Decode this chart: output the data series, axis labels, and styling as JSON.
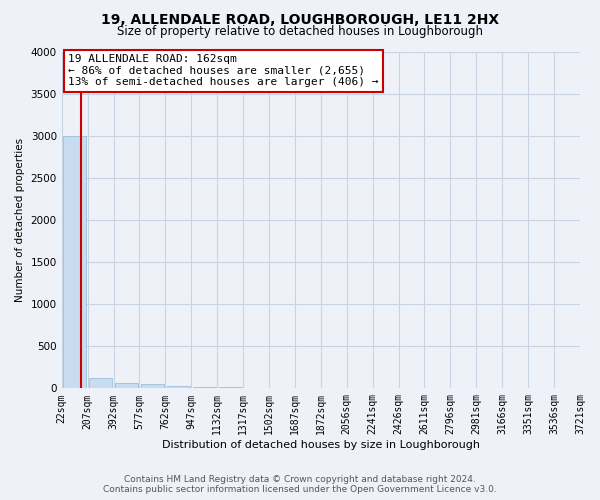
{
  "title": "19, ALLENDALE ROAD, LOUGHBOROUGH, LE11 2HX",
  "subtitle": "Size of property relative to detached houses in Loughborough",
  "xlabel": "Distribution of detached houses by size in Loughborough",
  "ylabel": "Number of detached properties",
  "footer_line1": "Contains HM Land Registry data © Crown copyright and database right 2024.",
  "footer_line2": "Contains public sector information licensed under the Open Government Licence v3.0.",
  "annotation_line1": "19 ALLENDALE ROAD: 162sqm",
  "annotation_line2": "← 86% of detached houses are smaller (2,655)",
  "annotation_line3": "13% of semi-detached houses are larger (406) →",
  "property_size": 162,
  "bar_edges": [
    22,
    207,
    392,
    577,
    762,
    947,
    1132,
    1317,
    1502,
    1687,
    1872,
    2056,
    2241,
    2426,
    2611,
    2796,
    2981,
    3166,
    3351,
    3536,
    3721
  ],
  "bar_heights": [
    3000,
    120,
    70,
    50,
    30,
    18,
    12,
    8,
    6,
    5,
    4,
    3,
    3,
    2,
    2,
    2,
    1,
    1,
    1,
    1
  ],
  "bar_color": "#c8dcf0",
  "bar_edgecolor": "#90b8d8",
  "ylim": [
    0,
    4000
  ],
  "yticks": [
    0,
    500,
    1000,
    1500,
    2000,
    2500,
    3000,
    3500,
    4000
  ],
  "background_color": "#eef2f8",
  "plot_bg_color": "#eef2f8",
  "grid_color": "#c8d4e4",
  "red_line_color": "#cc0000",
  "annotation_box_color": "white",
  "annotation_border_color": "#cc0000",
  "title_fontsize": 10,
  "subtitle_fontsize": 8.5,
  "xlabel_fontsize": 8,
  "ylabel_fontsize": 7.5,
  "tick_fontsize": 7,
  "annotation_fontsize": 8,
  "footer_fontsize": 6.5
}
